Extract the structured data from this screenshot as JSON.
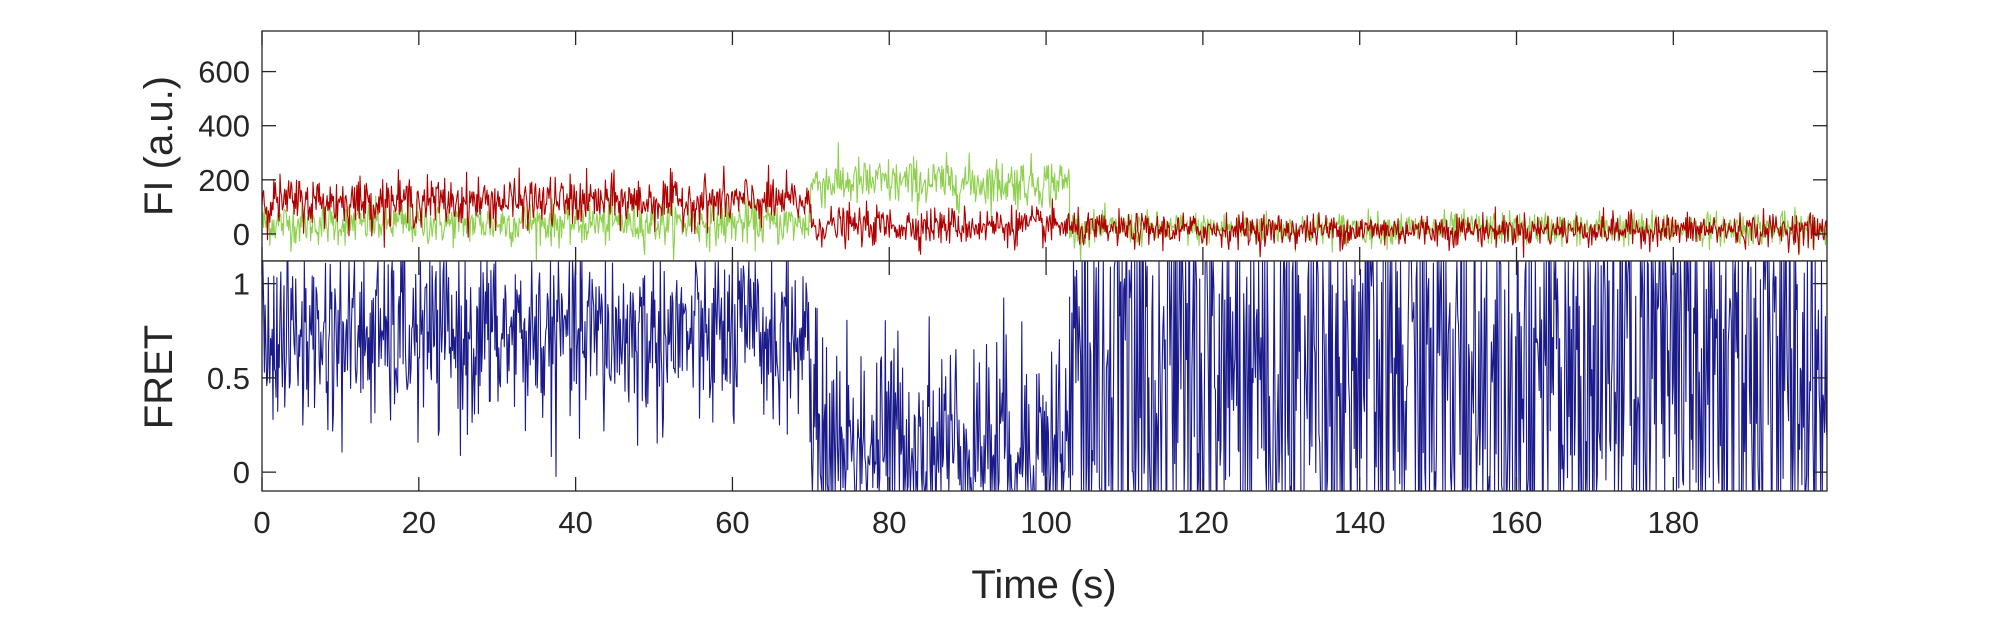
{
  "chart_data": [
    {
      "type": "line",
      "panel": "top",
      "ylabel": "FI (a.u.)",
      "xlabel": "",
      "xlim": [
        0,
        199.6
      ],
      "ylim": [
        -100,
        750
      ],
      "yticks": [
        0,
        200,
        400,
        600
      ],
      "yticklabels": [
        "0",
        "200",
        "400",
        "600"
      ],
      "xticks": [
        0,
        20,
        40,
        60,
        80,
        100,
        120,
        140,
        160,
        180
      ],
      "grid": false,
      "legend": "none",
      "sample_interval_s": 0.1,
      "series": [
        {
          "color": "#8fd14f",
          "segments": [
            {
              "t_start": 0,
              "t_end": 70,
              "mean": 40,
              "noise_sd": 40
            },
            {
              "t_start": 70,
              "t_end": 103,
              "mean": 190,
              "noise_sd": 45
            },
            {
              "t_start": 103,
              "t_end": 199.6,
              "mean": 20,
              "noise_sd": 30
            }
          ]
        },
        {
          "color": "#b00000",
          "segments": [
            {
              "t_start": 0,
              "t_end": 70,
              "mean": 120,
              "noise_sd": 45
            },
            {
              "t_start": 70,
              "t_end": 103,
              "mean": 30,
              "noise_sd": 35
            },
            {
              "t_start": 103,
              "t_end": 199.6,
              "mean": 15,
              "noise_sd": 30
            }
          ]
        }
      ]
    },
    {
      "type": "line",
      "panel": "bottom",
      "ylabel": "FRET",
      "xlabel": "Time (s)",
      "xlim": [
        0,
        199.6
      ],
      "ylim": [
        -0.1,
        1.12
      ],
      "clip": [
        -0.1,
        1.12
      ],
      "yticks": [
        0,
        0.5,
        1
      ],
      "yticklabels": [
        "0",
        "0.5",
        "1"
      ],
      "xticks": [
        0,
        20,
        40,
        60,
        80,
        100,
        120,
        140,
        160,
        180
      ],
      "xticklabels": [
        "0",
        "20",
        "40",
        "60",
        "80",
        "100",
        "120",
        "140",
        "160",
        "180"
      ],
      "grid": false,
      "legend": "none",
      "sample_interval_s": 0.1,
      "series": [
        {
          "color": "#1a1a8c",
          "segments": [
            {
              "t_start": 0,
              "t_end": 70,
              "mean": 0.72,
              "noise_sd": 0.25
            },
            {
              "t_start": 70,
              "t_end": 103,
              "mean": 0.15,
              "noise_sd": 0.3
            },
            {
              "t_start": 103,
              "t_end": 199.6,
              "mean": 0.5,
              "noise_sd": 0.8
            }
          ]
        }
      ]
    }
  ]
}
